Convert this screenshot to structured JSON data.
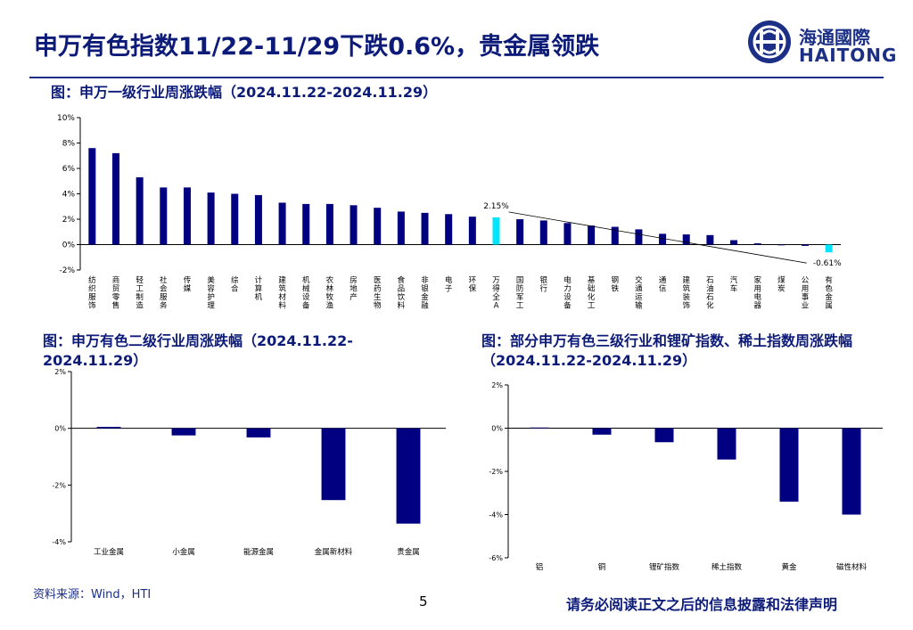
{
  "page": {
    "title": "申万有色指数11/22-11/29下跌0.6%，贵金属领跌",
    "source": "资料来源：Wind，HTI",
    "page_number": "5",
    "disclaimer": "请务必阅读正文之后的信息披露和法律声明",
    "logo_cn": "海通國際",
    "logo_en": "HAITONG"
  },
  "chart1": {
    "caption": "图：申万一级行业周涨跌幅（2024.11.22-2024.11.29）"
  },
  "chart2": {
    "caption": "图：申万有色二级行业周涨跌幅（2024.11.22-2024.11.29）"
  },
  "chart3": {
    "caption": "图：部分申万有色三级行业和锂矿指数、稀土指数周涨跌幅（2024.11.22-2024.11.29）"
  },
  "chart_data": [
    {
      "type": "bar",
      "categories": [
        "纺织服饰",
        "商贸零售",
        "轻工制造",
        "社会服务",
        "传媒",
        "美容护理",
        "综合",
        "计算机",
        "建筑材料",
        "机械设备",
        "农林牧渔",
        "房地产",
        "医药生物",
        "食品饮料",
        "非银金融",
        "电子",
        "环保",
        "万得全A",
        "国防军工",
        "银行",
        "电力设备",
        "基础化工",
        "钢铁",
        "交通运输",
        "通信",
        "建筑装饰",
        "石油石化",
        "汽车",
        "家用电器",
        "煤炭",
        "公用事业",
        "有色金属"
      ],
      "values": [
        7.6,
        7.2,
        5.3,
        4.5,
        4.5,
        4.1,
        4.0,
        3.9,
        3.3,
        3.2,
        3.2,
        3.1,
        2.9,
        2.6,
        2.5,
        2.4,
        2.2,
        2.15,
        2.0,
        1.9,
        1.7,
        1.5,
        1.4,
        1.2,
        0.85,
        0.8,
        0.75,
        0.35,
        0.1,
        0.0,
        -0.1,
        -0.61
      ],
      "highlight": [
        {
          "index": 17,
          "color": "#00e5ff"
        },
        {
          "index": 31,
          "color": "#00e5ff"
        }
      ],
      "bar_color": "#000080",
      "annotations": [
        {
          "index": 17,
          "text": "2.15%"
        },
        {
          "index": 31,
          "text": "-0.61%"
        }
      ],
      "ylim": [
        -2,
        10
      ],
      "yticks": [
        "-2%",
        "0%",
        "2%",
        "4%",
        "6%",
        "8%",
        "10%"
      ],
      "ytick_values": [
        -2,
        0,
        2,
        4,
        6,
        8,
        10
      ]
    },
    {
      "type": "bar",
      "categories": [
        "工业金属",
        "小金属",
        "能源金属",
        "金属新材料",
        "贵金属"
      ],
      "values": [
        0.05,
        -0.25,
        -0.32,
        -2.53,
        -3.36
      ],
      "bar_color": "#000080",
      "ylim": [
        -4,
        2
      ],
      "yticks": [
        "2%",
        "0%",
        "-2%",
        "-4%"
      ],
      "ytick_values": [
        2,
        0,
        -2,
        -4
      ]
    },
    {
      "type": "bar",
      "categories": [
        "铝",
        "铜",
        "锂矿指数",
        "稀土指数",
        "黄金",
        "磁性材料"
      ],
      "values": [
        0.03,
        -0.3,
        -0.65,
        -1.45,
        -3.4,
        -4.0
      ],
      "bar_color": "#000080",
      "ylim": [
        -6,
        2
      ],
      "yticks": [
        "2%",
        "0%",
        "-2%",
        "-4%",
        "-6%"
      ],
      "ytick_values": [
        2,
        0,
        -2,
        -4,
        -6
      ]
    }
  ]
}
